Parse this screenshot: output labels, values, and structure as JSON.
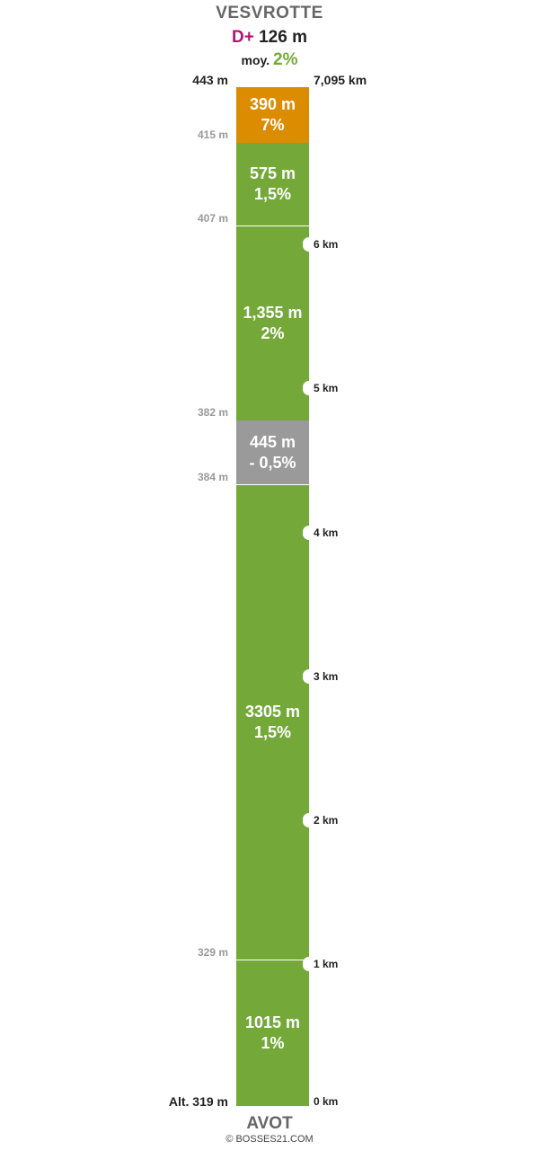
{
  "header": {
    "start_name": "VESVROTTE",
    "dplus_label": "D+",
    "dplus_value": "126 m",
    "avg_label": "moy.",
    "avg_value": "2%"
  },
  "top_left_label": "443 m",
  "top_right_label": "7,095 km",
  "bottom_left_label": "Alt. 319 m",
  "footer": {
    "end_name": "AVOT",
    "copyright": "© BOSSES21.COM"
  },
  "colors": {
    "orange": "#dc8c00",
    "green": "#74a93a",
    "grey": "#9a9a9a",
    "dplus": "#b0126e"
  },
  "chart_data": {
    "type": "bar",
    "total_km": 7.095,
    "segments_top_to_bottom": [
      {
        "length": "390 m",
        "grade": "7%",
        "length_m": 390,
        "color": "#dc8c00"
      },
      {
        "length": "575 m",
        "grade": "1,5%",
        "length_m": 575,
        "color": "#74a93a"
      },
      {
        "length": "1,355 m",
        "grade": "2%",
        "length_m": 1355,
        "color": "#74a93a"
      },
      {
        "length": "445 m",
        "grade": "- 0,5%",
        "length_m": 445,
        "color": "#9a9a9a"
      },
      {
        "length": "3305 m",
        "grade": "1,5%",
        "length_m": 3305,
        "color": "#74a93a"
      },
      {
        "length": "1015 m",
        "grade": "1%",
        "length_m": 1015,
        "color": "#74a93a"
      }
    ],
    "boundary_altitudes_top_to_bottom": [
      "415 m",
      "407 m",
      "382 m",
      "384 m",
      "329 m"
    ],
    "km_markers": [
      {
        "km": 6,
        "label": "6 km"
      },
      {
        "km": 5,
        "label": "5 km"
      },
      {
        "km": 4,
        "label": "4 km"
      },
      {
        "km": 3,
        "label": "3 km"
      },
      {
        "km": 2,
        "label": "2 km"
      },
      {
        "km": 1,
        "label": "1 km"
      },
      {
        "km": 0,
        "label": "0 km"
      }
    ]
  }
}
